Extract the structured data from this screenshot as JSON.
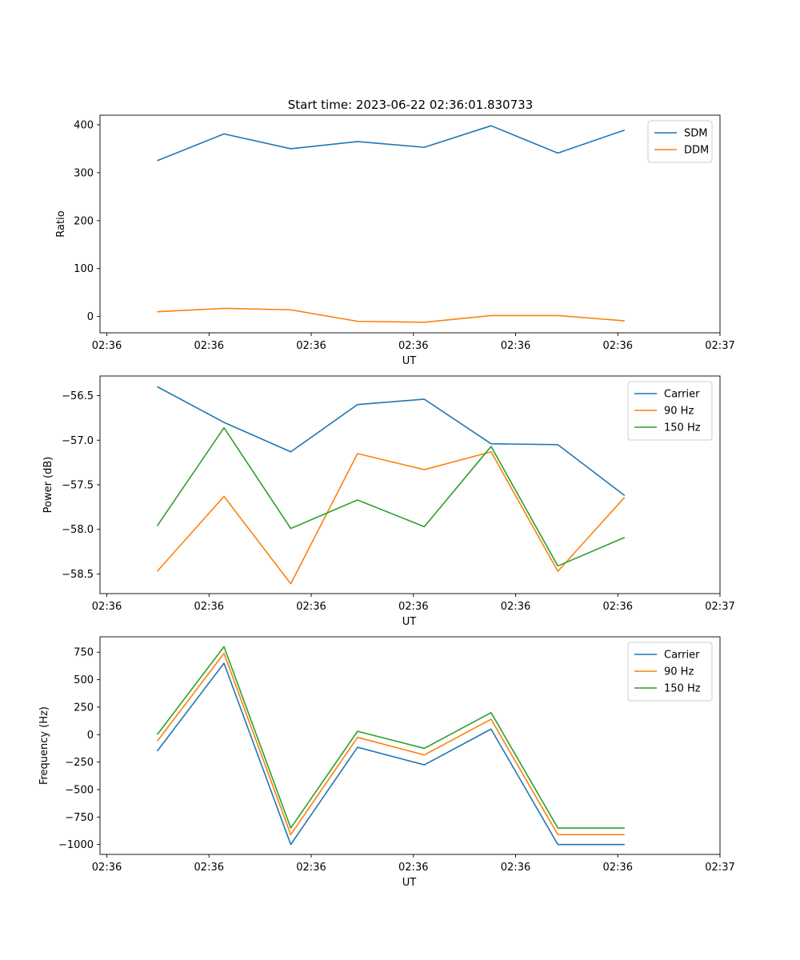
{
  "figure": {
    "title": "Start time: 2023-06-22 02:36:01.830733"
  },
  "colors": {
    "blue": "#1f77b4",
    "orange": "#ff7f0e",
    "green": "#2ca02c"
  },
  "chart_data": [
    {
      "type": "line",
      "xlabel": "UT",
      "ylabel": "Ratio",
      "ylim": [
        -34,
        420
      ],
      "yticks": [
        0,
        100,
        200,
        300,
        400
      ],
      "ytick_labels": [
        "0",
        "100",
        "200",
        "300",
        "400"
      ],
      "xlim": [
        0,
        9.1
      ],
      "xticks": [
        0.1,
        1.6,
        3.1,
        4.6,
        6.1,
        7.6,
        9.1
      ],
      "xtick_labels": [
        "02:36",
        "02:36",
        "02:36",
        "02:36",
        "02:36",
        "02:36",
        "02:37"
      ],
      "x": [
        0.84,
        1.82,
        2.8,
        3.78,
        4.76,
        5.74,
        6.72,
        7.7
      ],
      "legend_position": "top-right",
      "grid": false,
      "series": [
        {
          "name": "SDM",
          "color": "#1f77b4",
          "values": [
            325,
            381,
            350,
            365,
            353,
            398,
            341,
            389
          ]
        },
        {
          "name": "DDM",
          "color": "#ff7f0e",
          "values": [
            10,
            17,
            14,
            -10,
            -12,
            2,
            2,
            -9
          ]
        }
      ]
    },
    {
      "type": "line",
      "xlabel": "UT",
      "ylabel": "Power (dB)",
      "ylim": [
        -58.72,
        -56.28
      ],
      "yticks": [
        -58.5,
        -58.0,
        -57.5,
        -57.0,
        -56.5
      ],
      "ytick_labels": [
        "−58.5",
        "−58.0",
        "−57.5",
        "−57.0",
        "−56.5"
      ],
      "xlim": [
        0,
        9.1
      ],
      "xticks": [
        0.1,
        1.6,
        3.1,
        4.6,
        6.1,
        7.6,
        9.1
      ],
      "xtick_labels": [
        "02:36",
        "02:36",
        "02:36",
        "02:36",
        "02:36",
        "02:36",
        "02:37"
      ],
      "x": [
        0.84,
        1.82,
        2.8,
        3.78,
        4.76,
        5.74,
        6.72,
        7.7
      ],
      "legend_position": "top-right",
      "grid": false,
      "series": [
        {
          "name": "Carrier",
          "color": "#1f77b4",
          "values": [
            -56.4,
            -56.8,
            -57.13,
            -56.6,
            -56.54,
            -57.04,
            -57.05,
            -57.62
          ]
        },
        {
          "name": "90 Hz",
          "color": "#ff7f0e",
          "values": [
            -58.47,
            -57.63,
            -58.61,
            -57.15,
            -57.33,
            -57.13,
            -58.47,
            -57.64
          ]
        },
        {
          "name": "150 Hz",
          "color": "#2ca02c",
          "values": [
            -57.96,
            -56.86,
            -57.99,
            -57.67,
            -57.97,
            -57.07,
            -58.41,
            -58.09
          ]
        }
      ]
    },
    {
      "type": "line",
      "xlabel": "UT",
      "ylabel": "Frequency (Hz)",
      "ylim": [
        -1090,
        890
      ],
      "yticks": [
        -1000,
        -750,
        -500,
        -250,
        0,
        250,
        500,
        750
      ],
      "ytick_labels": [
        "−1000",
        "−750",
        "−500",
        "−250",
        "0",
        "250",
        "500",
        "750"
      ],
      "xlim": [
        0,
        9.1
      ],
      "xticks": [
        0.1,
        1.6,
        3.1,
        4.6,
        6.1,
        7.6,
        9.1
      ],
      "xtick_labels": [
        "02:36",
        "02:36",
        "02:36",
        "02:36",
        "02:36",
        "02:36",
        "02:37"
      ],
      "x": [
        0.84,
        1.82,
        2.8,
        3.78,
        4.76,
        5.74,
        6.72,
        7.7
      ],
      "legend_position": "top-right",
      "grid": false,
      "series": [
        {
          "name": "Carrier",
          "color": "#1f77b4",
          "values": [
            -150,
            650,
            -1000,
            -115,
            -275,
            50,
            -1000,
            -1000
          ]
        },
        {
          "name": "90 Hz",
          "color": "#ff7f0e",
          "values": [
            -60,
            740,
            -910,
            -25,
            -185,
            140,
            -910,
            -910
          ]
        },
        {
          "name": "150 Hz",
          "color": "#2ca02c",
          "values": [
            0,
            800,
            -850,
            30,
            -125,
            200,
            -850,
            -850
          ]
        }
      ]
    }
  ]
}
